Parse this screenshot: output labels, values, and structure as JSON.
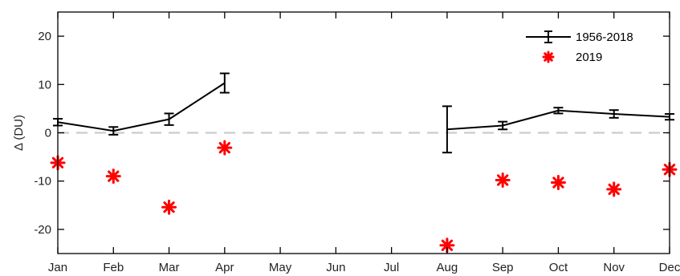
{
  "chart_data": {
    "type": "line",
    "ylabel": "Δ (DU)",
    "xlabel": "",
    "title": "",
    "ylim": [
      -25,
      25
    ],
    "yticks": [
      -20,
      -10,
      0,
      10,
      20
    ],
    "categories": [
      "Jan",
      "Feb",
      "Mar",
      "Apr",
      "May",
      "Jun",
      "Jul",
      "Aug",
      "Sep",
      "Oct",
      "Nov",
      "Dec"
    ],
    "grid": false,
    "legend_position": "top-right",
    "zero_line": {
      "y": 0,
      "style": "dashed",
      "color": "#cccccc"
    },
    "series": [
      {
        "name": "1956-2018",
        "style": "line-with-errorbars",
        "color": "#000000",
        "values": [
          2.2,
          0.4,
          2.8,
          10.3,
          null,
          null,
          null,
          0.7,
          1.5,
          4.6,
          3.9,
          3.3
        ],
        "errors": [
          0.7,
          0.8,
          1.2,
          2.0,
          null,
          null,
          null,
          4.8,
          0.8,
          0.6,
          0.8,
          0.6
        ]
      },
      {
        "name": "2019",
        "style": "markers",
        "marker": "asterisk",
        "color": "#ff0000",
        "values": [
          -6.2,
          -9.0,
          -15.4,
          -3.1,
          null,
          null,
          null,
          -23.3,
          -9.8,
          -10.3,
          -11.7,
          -7.6
        ]
      }
    ]
  }
}
